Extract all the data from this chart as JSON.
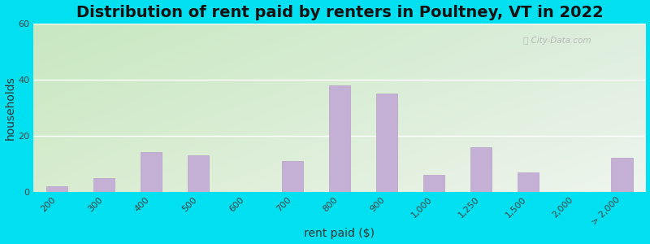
{
  "title": "Distribution of rent paid by renters in Poultney, VT in 2022",
  "xlabel": "rent paid ($)",
  "ylabel": "households",
  "categories": [
    "200",
    "300",
    "400",
    "500",
    "600",
    "700",
    "800",
    "900",
    "1,000",
    "1,250",
    "1,500",
    "2,000",
    "> 2,000"
  ],
  "values": [
    2,
    5,
    14,
    13,
    0,
    11,
    38,
    35,
    6,
    16,
    7,
    0,
    12
  ],
  "bar_color": "#c4b0d4",
  "bar_edge_color": "#b8a0c8",
  "ylim": [
    0,
    60
  ],
  "yticks": [
    0,
    20,
    40,
    60
  ],
  "background_outer": "#00e0f0",
  "grad_top_left": "#c8e8c0",
  "grad_top_right": "#ddeedd",
  "grad_bot_left": "#d8ecd0",
  "grad_bot_right": "#eef5ee",
  "title_fontsize": 14,
  "axis_label_fontsize": 10,
  "tick_fontsize": 8
}
